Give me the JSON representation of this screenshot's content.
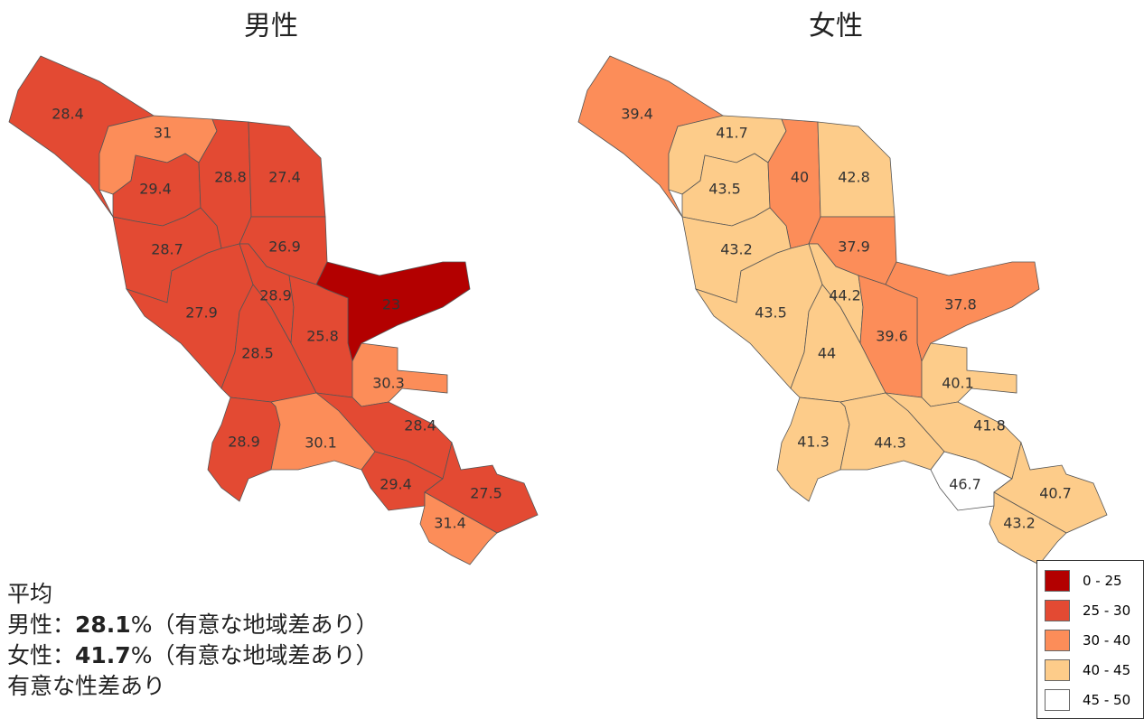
{
  "maps": [
    {
      "title": "男性",
      "regions": [
        {
          "value": 28.4,
          "color": "#e34a33"
        },
        {
          "value": 31,
          "color": "#fc8d59"
        },
        {
          "value": 29.4,
          "color": "#e34a33"
        },
        {
          "value": 28.8,
          "color": "#e34a33"
        },
        {
          "value": 27.4,
          "color": "#e34a33"
        },
        {
          "value": 28.7,
          "color": "#e34a33"
        },
        {
          "value": 26.9,
          "color": "#e34a33"
        },
        {
          "value": 23,
          "color": "#b30000"
        },
        {
          "value": 28.9,
          "color": "#e34a33"
        },
        {
          "value": 27.9,
          "color": "#e34a33"
        },
        {
          "value": 25.8,
          "color": "#e34a33"
        },
        {
          "value": 28.5,
          "color": "#e34a33"
        },
        {
          "value": 30.3,
          "color": "#fc8d59"
        },
        {
          "value": 28.4,
          "color": "#e34a33"
        },
        {
          "value": 28.9,
          "color": "#e34a33"
        },
        {
          "value": 30.1,
          "color": "#fc8d59"
        },
        {
          "value": 29.4,
          "color": "#e34a33"
        },
        {
          "value": 27.5,
          "color": "#e34a33"
        },
        {
          "value": 31.4,
          "color": "#fc8d59"
        }
      ]
    },
    {
      "title": "女性",
      "regions": [
        {
          "value": 39.4,
          "color": "#fc8d59"
        },
        {
          "value": 41.7,
          "color": "#fdcc8a"
        },
        {
          "value": 43.5,
          "color": "#fdcc8a"
        },
        {
          "value": 40,
          "color": "#fc8d59"
        },
        {
          "value": 42.8,
          "color": "#fdcc8a"
        },
        {
          "value": 43.2,
          "color": "#fdcc8a"
        },
        {
          "value": 37.9,
          "color": "#fc8d59"
        },
        {
          "value": 37.8,
          "color": "#fc8d59"
        },
        {
          "value": 44.2,
          "color": "#fdcc8a"
        },
        {
          "value": 43.5,
          "color": "#fdcc8a"
        },
        {
          "value": 39.6,
          "color": "#fc8d59"
        },
        {
          "value": 44,
          "color": "#fdcc8a"
        },
        {
          "value": 40.1,
          "color": "#fdcc8a"
        },
        {
          "value": 41.8,
          "color": "#fdcc8a"
        },
        {
          "value": 41.3,
          "color": "#fdcc8a"
        },
        {
          "value": 44.3,
          "color": "#fdcc8a"
        },
        {
          "value": 46.7,
          "color": "#ffffff"
        },
        {
          "value": 40.7,
          "color": "#fdcc8a"
        },
        {
          "value": 43.2,
          "color": "#fdcc8a"
        }
      ]
    }
  ],
  "legend": [
    {
      "label": "0 - 25",
      "color": "#b30000"
    },
    {
      "label": "25 - 30",
      "color": "#e34a33"
    },
    {
      "label": "30 - 40",
      "color": "#fc8d59"
    },
    {
      "label": "40 - 45",
      "color": "#fdcc8a"
    },
    {
      "label": "45 - 50",
      "color": "#ffffff"
    }
  ],
  "summary": {
    "heading": "平均",
    "lines": [
      {
        "prefix": "男性：",
        "value": 28.1,
        "suffix": "%（有意な地域差あり）"
      },
      {
        "prefix": "女性：",
        "value": 41.7,
        "suffix": "%（有意な地域差あり）"
      }
    ],
    "note": "有意な性差あり"
  }
}
